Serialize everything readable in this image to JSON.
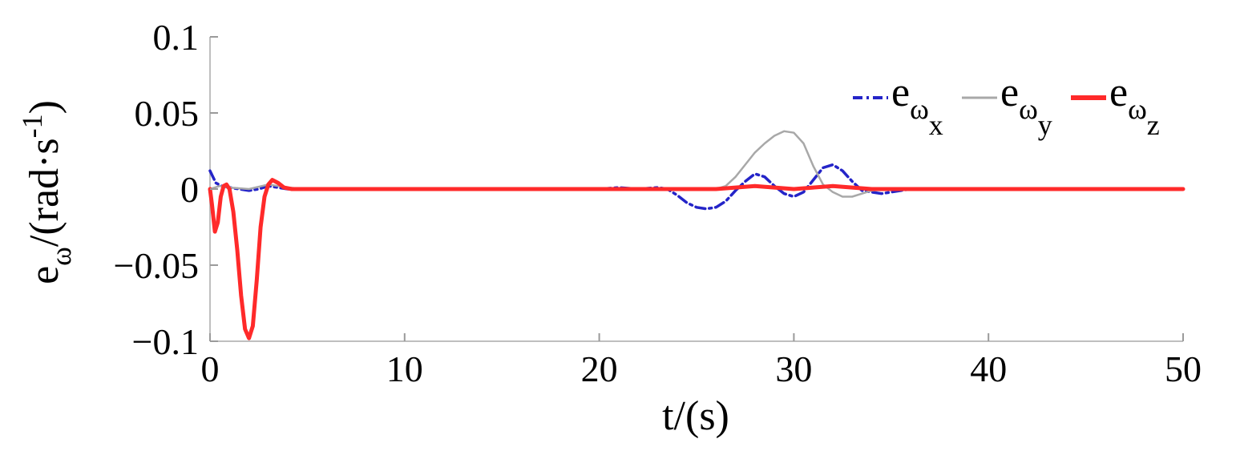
{
  "chart_data": {
    "type": "line",
    "xlabel": "t/(s)",
    "ylabel": {
      "base": "e",
      "sub": "ω",
      "unit_prefix": "/(rad·s",
      "unit_sup": "-1",
      "unit_suffix": ")"
    },
    "xlim": [
      0,
      50
    ],
    "ylim": [
      -0.1,
      0.1
    ],
    "xticks": [
      0,
      10,
      20,
      30,
      40,
      50
    ],
    "xtick_labels": [
      "0",
      "10",
      "20",
      "30",
      "40",
      "50"
    ],
    "yticks": [
      -0.1,
      -0.05,
      0,
      0.05,
      0.1
    ],
    "ytick_labels": [
      "−0.1",
      "−0.05",
      "0",
      "0.05",
      "0.1"
    ],
    "grid": false,
    "legend_position": "top-right",
    "series": [
      {
        "name": "e_ωx",
        "legend_base": "e",
        "legend_sub": "ω",
        "legend_subsub": "x",
        "color": "#2424c8",
        "style": "dashdot",
        "x": [
          0,
          0.3,
          0.6,
          1.0,
          1.5,
          2.0,
          2.5,
          3.0,
          3.5,
          4.0,
          5.0,
          10,
          20,
          21,
          22,
          23,
          23.5,
          24,
          24.5,
          25,
          25.5,
          26,
          26.5,
          27,
          27.5,
          28,
          28.5,
          29,
          29.5,
          30,
          30.5,
          31,
          31.5,
          32,
          32.5,
          33,
          33.5,
          34,
          34.5,
          35,
          35.5,
          36,
          40,
          50
        ],
        "y": [
          0.012,
          0.004,
          0.002,
          0.001,
          0.0,
          -0.001,
          0.0,
          0.002,
          0.001,
          0.0,
          0.0,
          0.0,
          0.0,
          0.001,
          0.0,
          0.001,
          0.0,
          -0.004,
          -0.009,
          -0.012,
          -0.013,
          -0.012,
          -0.008,
          -0.001,
          0.005,
          0.01,
          0.008,
          0.002,
          -0.003,
          -0.005,
          -0.002,
          0.006,
          0.014,
          0.016,
          0.012,
          0.005,
          -0.001,
          -0.002,
          -0.003,
          -0.002,
          -0.001,
          0.0,
          0.0,
          0.0
        ]
      },
      {
        "name": "e_ωy",
        "legend_base": "e",
        "legend_sub": "ω",
        "legend_subsub": "y",
        "color": "#a8a8a8",
        "style": "solid",
        "x": [
          0,
          0.5,
          1.0,
          2.0,
          3.0,
          3.5,
          4.0,
          5.0,
          10,
          20,
          26,
          26.5,
          27,
          27.5,
          28,
          28.5,
          29,
          29.5,
          30,
          30.5,
          31,
          31.5,
          32,
          32.5,
          33,
          33.5,
          34,
          35,
          40,
          50
        ],
        "y": [
          0.0,
          0.002,
          0.001,
          0.0,
          0.003,
          0.002,
          0.001,
          0.0,
          0.0,
          0.0,
          0.0,
          0.002,
          0.008,
          0.016,
          0.024,
          0.03,
          0.035,
          0.038,
          0.037,
          0.03,
          0.015,
          0.003,
          -0.002,
          -0.005,
          -0.005,
          -0.003,
          -0.001,
          0.0,
          0.0,
          0.0
        ]
      },
      {
        "name": "e_ωz",
        "legend_base": "e",
        "legend_sub": "ω",
        "legend_subsub": "z",
        "color": "#ff2a2a",
        "style": "solid",
        "x": [
          0,
          0.1,
          0.25,
          0.4,
          0.55,
          0.7,
          0.85,
          1.0,
          1.2,
          1.4,
          1.6,
          1.8,
          2.0,
          2.2,
          2.4,
          2.6,
          2.8,
          3.0,
          3.2,
          3.5,
          3.8,
          4.2,
          5.0,
          10,
          20,
          26,
          27,
          28,
          29,
          30,
          31,
          32,
          33,
          34,
          35,
          40,
          50
        ],
        "y": [
          0.0,
          -0.01,
          -0.028,
          -0.022,
          -0.005,
          0.002,
          0.003,
          0.0,
          -0.015,
          -0.04,
          -0.07,
          -0.092,
          -0.098,
          -0.09,
          -0.06,
          -0.025,
          -0.005,
          0.003,
          0.006,
          0.004,
          0.001,
          0.0,
          0.0,
          0.0,
          0.0,
          0.0,
          0.001,
          0.002,
          0.001,
          0.0,
          0.001,
          0.002,
          0.001,
          0.0,
          0.0,
          0.0,
          0.0
        ]
      }
    ]
  }
}
